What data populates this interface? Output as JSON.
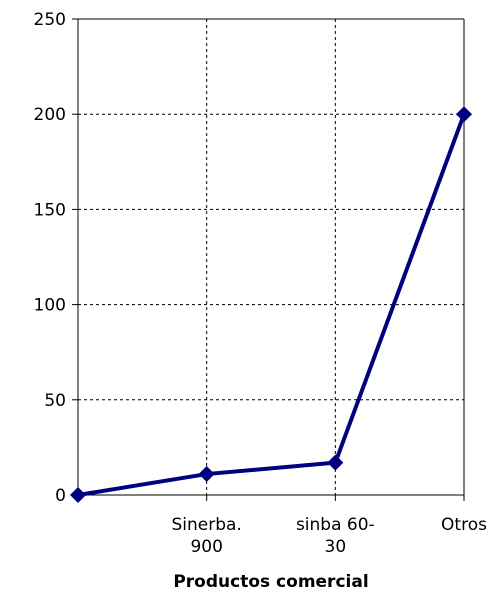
{
  "chart_data": {
    "type": "line",
    "xlabel": "Productos comercial",
    "categories": [
      null,
      "Sinerba.\n900",
      "sinba 60-\n30",
      "Otros"
    ],
    "series": [
      {
        "color": "#000080",
        "values": [
          0,
          11,
          17,
          200
        ]
      }
    ],
    "ylim": [
      0,
      250
    ],
    "yticks": [
      0,
      50,
      100,
      150,
      200,
      250
    ],
    "grid": true
  }
}
